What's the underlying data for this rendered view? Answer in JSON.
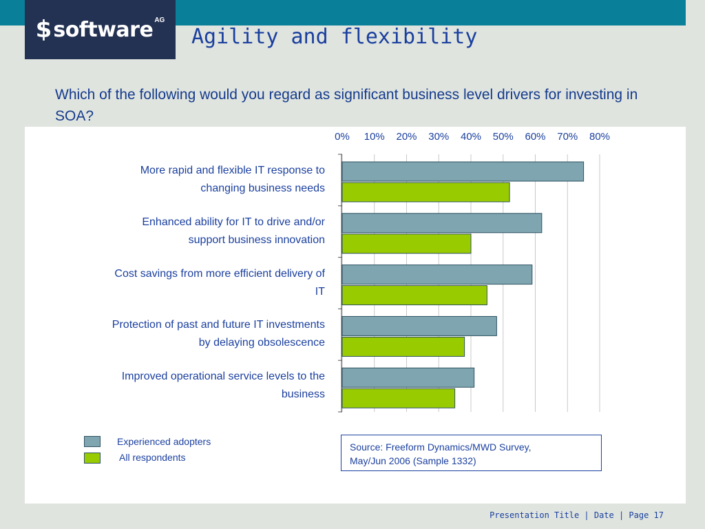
{
  "header": {
    "logo_mark": "$",
    "logo_text": "software",
    "logo_suffix": "AG",
    "title": "Agility and flexibility"
  },
  "question": "Which of the following would you regard as significant business level drivers for investing in SOA?",
  "chart_data": {
    "type": "bar",
    "orientation": "horizontal",
    "categories": [
      "More rapid and flexible IT response to changing business needs",
      "Enhanced ability for IT to drive and/or support business innovation",
      "Cost savings from more efficient delivery of IT",
      "Protection of past and future IT investments by delaying obsolescence",
      "Improved operational service levels to the business"
    ],
    "category_lines": [
      [
        "More rapid and flexible IT response to",
        "changing business needs"
      ],
      [
        "Enhanced ability for IT to drive and/or",
        "support business innovation"
      ],
      [
        "Cost savings from more efficient delivery of",
        "IT"
      ],
      [
        "Protection of past and future IT investments",
        "by delaying obsolescence"
      ],
      [
        "Improved operational service levels to the",
        "business"
      ]
    ],
    "series": [
      {
        "name": "Experienced adopters",
        "color": "#7fa6b0",
        "values": [
          75,
          62,
          59,
          48,
          41
        ]
      },
      {
        "name": "All respondents",
        "color": "#99cc00",
        "values": [
          52,
          40,
          45,
          38,
          35
        ]
      }
    ],
    "xlim": [
      0,
      80
    ],
    "ticks": [
      "0%",
      "10%",
      "20%",
      "30%",
      "40%",
      "50%",
      "60%",
      "70%",
      "80%"
    ],
    "axis_position": "top",
    "grid": true,
    "legend_placement": "bottom-left"
  },
  "legend": {
    "items": [
      {
        "label": "Experienced adopters",
        "color": "#7fa6b0"
      },
      {
        "label": "All respondents",
        "color": "#99cc00"
      }
    ]
  },
  "source": {
    "line1": "Source: Freeform Dynamics/MWD Survey,",
    "line2": "May/Jun 2006 (Sample 1332)"
  },
  "footer": "Presentation Title | Date | Page 17"
}
